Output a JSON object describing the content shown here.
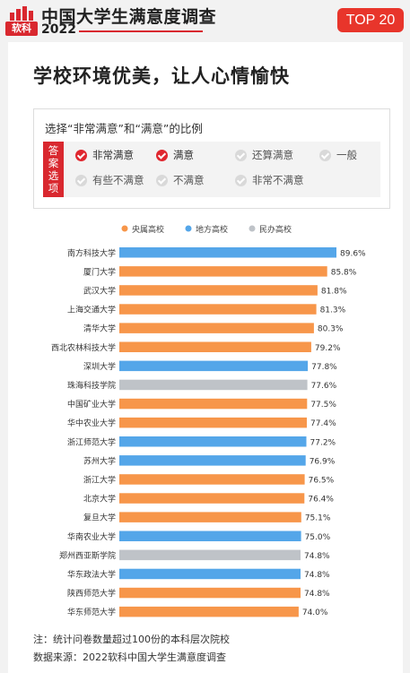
{
  "header": {
    "logo_text": "软科",
    "title": "中国大学生满意度调查",
    "year": "2022",
    "badge": "TOP 20"
  },
  "headline": "学校环境优美，让人心情愉快",
  "selection": {
    "question": "选择“非常满意”和“满意”的比例",
    "answer_label": "答案选项",
    "options": [
      {
        "label": "非常满意",
        "selected": true
      },
      {
        "label": "满意",
        "selected": true
      },
      {
        "label": "还算满意",
        "selected": false
      },
      {
        "label": "一般",
        "selected": false
      },
      {
        "label": "有些不满意",
        "selected": false
      },
      {
        "label": "不满意",
        "selected": false
      },
      {
        "label": "非常不满意",
        "selected": false
      }
    ]
  },
  "chart_data": {
    "type": "bar",
    "orientation": "horizontal",
    "legend": [
      {
        "name": "央属高校",
        "color": "#f7964a"
      },
      {
        "name": "地方高校",
        "color": "#54a6e9"
      },
      {
        "name": "民办高校",
        "color": "#bfc3c8"
      }
    ],
    "categories": [
      "南方科技大学",
      "厦门大学",
      "武汉大学",
      "上海交通大学",
      "清华大学",
      "西北农林科技大学",
      "深圳大学",
      "珠海科技学院",
      "中国矿业大学",
      "华中农业大学",
      "浙江师范大学",
      "苏州大学",
      "浙江大学",
      "北京大学",
      "复旦大学",
      "华南农业大学",
      "郑州西亚斯学院",
      "华东政法大学",
      "陕西师范大学",
      "华东师范大学"
    ],
    "values": [
      89.6,
      85.8,
      81.8,
      81.3,
      80.3,
      79.2,
      77.8,
      77.6,
      77.5,
      77.4,
      77.2,
      76.9,
      76.5,
      76.4,
      75.1,
      75.0,
      74.8,
      74.8,
      74.8,
      74.0
    ],
    "value_labels": [
      "89.6%",
      "85.8%",
      "81.8%",
      "81.3%",
      "80.3%",
      "79.2%",
      "77.8%",
      "77.6%",
      "77.5%",
      "77.4%",
      "77.2%",
      "76.9%",
      "76.5%",
      "76.4%",
      "75.1%",
      "75.0%",
      "74.8%",
      "74.8%",
      "74.8%",
      "74.0%"
    ],
    "types": [
      "地方高校",
      "央属高校",
      "央属高校",
      "央属高校",
      "央属高校",
      "央属高校",
      "地方高校",
      "民办高校",
      "央属高校",
      "央属高校",
      "地方高校",
      "地方高校",
      "央属高校",
      "央属高校",
      "央属高校",
      "地方高校",
      "民办高校",
      "地方高校",
      "央属高校",
      "央属高校"
    ],
    "xlim": [
      0,
      90
    ],
    "legend_position": "top"
  },
  "notes": {
    "note": "注：统计问卷数量超过100份的本科层次院校",
    "source": "数据来源：2022软科中国大学生满意度调查"
  }
}
